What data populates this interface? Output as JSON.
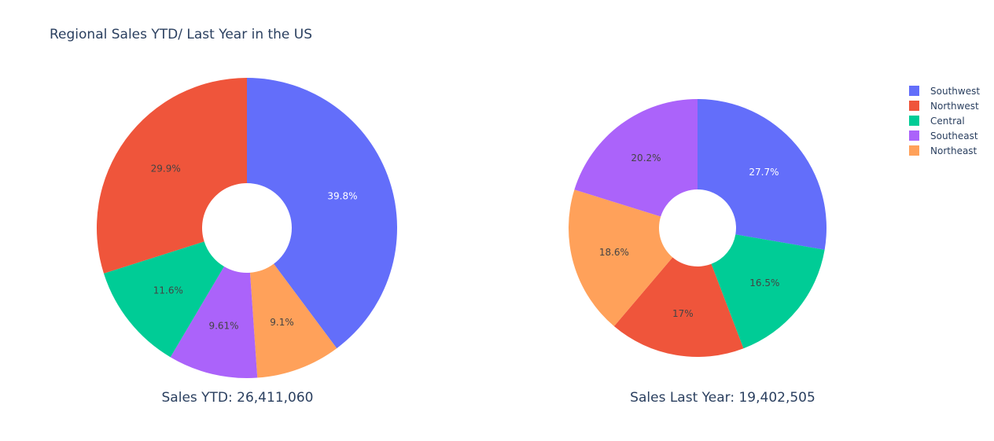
{
  "title": "Regional Sales YTD/ Last Year in the US",
  "legend": [
    {
      "name": "Southwest",
      "color": "#636efa"
    },
    {
      "name": "Northwest",
      "color": "#ef553b"
    },
    {
      "name": "Central",
      "color": "#00cc96"
    },
    {
      "name": "Southeast",
      "color": "#ab63fa"
    },
    {
      "name": "Northeast",
      "color": "#ffa15a"
    }
  ],
  "chart_data": [
    {
      "type": "pie",
      "hole": true,
      "subtitle": "Sales YTD: 26,411,060",
      "slices": [
        {
          "label": "Southwest",
          "percent": 39.8,
          "text": "39.8%"
        },
        {
          "label": "Northeast",
          "percent": 9.1,
          "text": "9.1%"
        },
        {
          "label": "Southeast",
          "percent": 9.61,
          "text": "9.61%"
        },
        {
          "label": "Central",
          "percent": 11.6,
          "text": "11.6%"
        },
        {
          "label": "Northwest",
          "percent": 29.9,
          "text": "29.9%"
        }
      ]
    },
    {
      "type": "pie",
      "hole": true,
      "subtitle": "Sales Last Year: 19,402,505",
      "slices": [
        {
          "label": "Southwest",
          "percent": 27.7,
          "text": "27.7%"
        },
        {
          "label": "Central",
          "percent": 16.5,
          "text": "16.5%"
        },
        {
          "label": "Northwest",
          "percent": 17,
          "text": "17%"
        },
        {
          "label": "Northeast",
          "percent": 18.6,
          "text": "18.6%"
        },
        {
          "label": "Southeast",
          "percent": 20.2,
          "text": "20.2%"
        }
      ]
    }
  ]
}
